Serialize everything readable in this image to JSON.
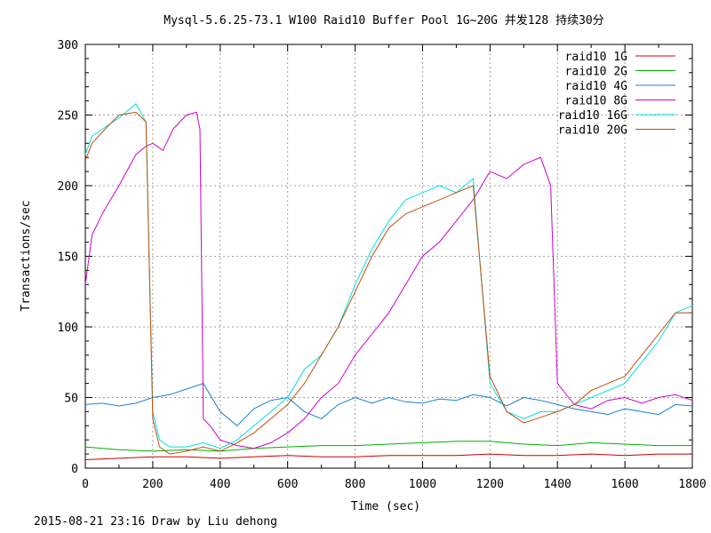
{
  "footer": "2015-08-21 23:16 Draw by Liu dehong",
  "chart_data": {
    "type": "line",
    "title": "Mysql-5.6.25-73.1 W100 Raid10 Buffer Pool 1G~20G 并发128 持续30分",
    "xlabel": "Time (sec)",
    "ylabel": "Transactions/sec",
    "xlim": [
      0,
      1800
    ],
    "ylim": [
      0,
      300
    ],
    "xticks": [
      0,
      200,
      400,
      600,
      800,
      1000,
      1200,
      1400,
      1600,
      1800
    ],
    "yticks": [
      0,
      50,
      100,
      150,
      200,
      250,
      300
    ],
    "grid": true,
    "legend_position": "top-right",
    "series": [
      {
        "name": "raid10 1G",
        "color": "#cc0000",
        "x": [
          0,
          100,
          200,
          300,
          400,
          500,
          600,
          700,
          800,
          900,
          1000,
          1100,
          1200,
          1300,
          1400,
          1500,
          1600,
          1700,
          1800
        ],
        "values": [
          6,
          7,
          8,
          8,
          7,
          8,
          9,
          8,
          8,
          9,
          9,
          9,
          10,
          9,
          9,
          10,
          9,
          10,
          10
        ]
      },
      {
        "name": "raid10 2G",
        "color": "#00b000",
        "x": [
          0,
          100,
          200,
          300,
          400,
          500,
          600,
          700,
          800,
          900,
          1000,
          1100,
          1200,
          1300,
          1400,
          1500,
          1600,
          1700,
          1800
        ],
        "values": [
          15,
          13,
          12,
          13,
          12,
          14,
          15,
          16,
          16,
          17,
          18,
          19,
          19,
          17,
          16,
          18,
          17,
          16,
          16
        ]
      },
      {
        "name": "raid10 4G",
        "color": "#1a7fd4",
        "x": [
          0,
          50,
          100,
          150,
          200,
          250,
          300,
          350,
          400,
          450,
          500,
          550,
          600,
          650,
          700,
          750,
          800,
          850,
          900,
          950,
          1000,
          1050,
          1100,
          1150,
          1200,
          1250,
          1300,
          1350,
          1400,
          1450,
          1500,
          1550,
          1600,
          1650,
          1700,
          1750,
          1800
        ],
        "values": [
          45,
          46,
          44,
          46,
          50,
          52,
          56,
          60,
          40,
          30,
          42,
          48,
          50,
          40,
          35,
          45,
          50,
          46,
          50,
          47,
          46,
          49,
          48,
          52,
          50,
          44,
          50,
          48,
          45,
          42,
          40,
          38,
          42,
          40,
          38,
          45,
          44
        ]
      },
      {
        "name": "raid10 8G",
        "color": "#cc00cc",
        "x": [
          0,
          20,
          50,
          100,
          150,
          180,
          200,
          230,
          260,
          300,
          330,
          340,
          350,
          370,
          400,
          450,
          500,
          550,
          600,
          650,
          700,
          750,
          800,
          850,
          900,
          950,
          1000,
          1050,
          1100,
          1150,
          1200,
          1250,
          1300,
          1350,
          1380,
          1400,
          1450,
          1500,
          1550,
          1600,
          1650,
          1700,
          1750,
          1800
        ],
        "values": [
          130,
          165,
          180,
          200,
          222,
          228,
          230,
          225,
          240,
          250,
          252,
          240,
          35,
          30,
          20,
          16,
          14,
          18,
          25,
          35,
          50,
          60,
          80,
          95,
          110,
          130,
          150,
          160,
          175,
          190,
          210,
          205,
          215,
          220,
          200,
          60,
          45,
          42,
          48,
          50,
          46,
          50,
          52,
          48
        ]
      },
      {
        "name": "raid10 16G",
        "color": "#00e0e0",
        "x": [
          0,
          20,
          50,
          100,
          150,
          180,
          200,
          220,
          250,
          300,
          350,
          400,
          450,
          500,
          550,
          600,
          650,
          700,
          750,
          800,
          850,
          900,
          950,
          1000,
          1050,
          1100,
          1150,
          1200,
          1250,
          1300,
          1350,
          1400,
          1450,
          1500,
          1550,
          1600,
          1650,
          1700,
          1750,
          1800
        ],
        "values": [
          222,
          235,
          240,
          248,
          258,
          245,
          40,
          20,
          15,
          15,
          18,
          14,
          20,
          30,
          40,
          50,
          70,
          80,
          100,
          130,
          155,
          175,
          190,
          195,
          200,
          195,
          205,
          60,
          40,
          35,
          40,
          40,
          45,
          50,
          55,
          60,
          75,
          90,
          110,
          115
        ]
      },
      {
        "name": "raid10 20G",
        "color": "#c0500a",
        "x": [
          0,
          20,
          50,
          100,
          150,
          180,
          200,
          220,
          250,
          300,
          350,
          400,
          450,
          500,
          550,
          600,
          650,
          700,
          750,
          800,
          850,
          900,
          950,
          1000,
          1050,
          1100,
          1150,
          1200,
          1250,
          1300,
          1350,
          1400,
          1450,
          1500,
          1550,
          1600,
          1650,
          1700,
          1750,
          1800
        ],
        "values": [
          218,
          230,
          238,
          250,
          252,
          245,
          35,
          15,
          10,
          12,
          15,
          12,
          18,
          25,
          35,
          45,
          60,
          80,
          100,
          125,
          150,
          170,
          180,
          185,
          190,
          195,
          200,
          65,
          40,
          32,
          36,
          40,
          45,
          55,
          60,
          65,
          80,
          95,
          110,
          110
        ]
      }
    ]
  }
}
